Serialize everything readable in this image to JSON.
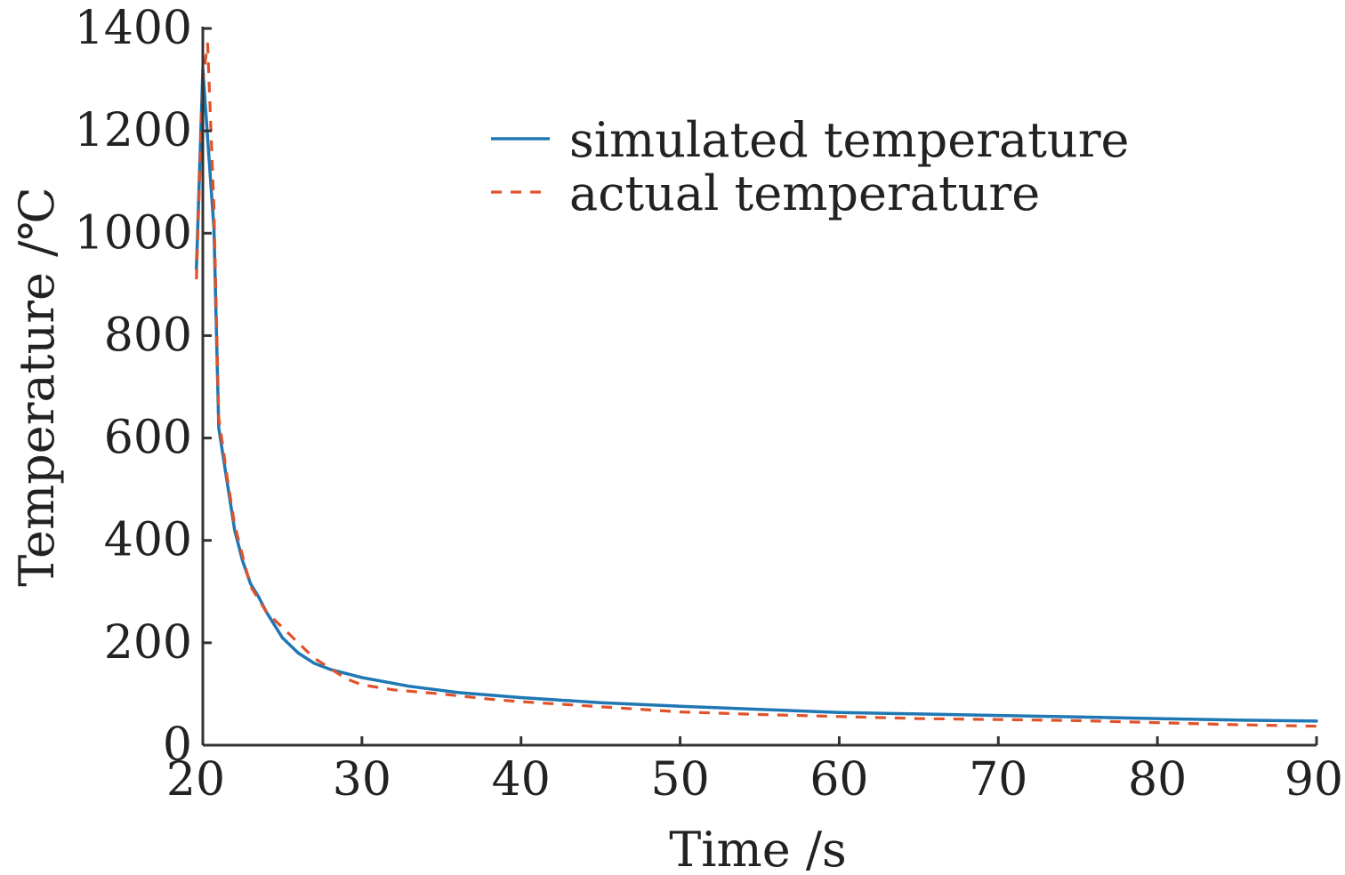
{
  "chart_data": {
    "type": "line",
    "title": "",
    "xlabel": "Time /s",
    "ylabel": "Temperature /℃",
    "xlim": [
      20,
      90
    ],
    "ylim": [
      0,
      1400
    ],
    "xticks": [
      20,
      30,
      40,
      50,
      60,
      70,
      80,
      90
    ],
    "yticks": [
      0,
      200,
      400,
      600,
      800,
      1000,
      1200,
      1400
    ],
    "grid": false,
    "legend_position": "top-right",
    "series": [
      {
        "name": "simulated temperature",
        "color": "#1f77b4",
        "style": "solid",
        "x": [
          19.6,
          20.0,
          20.7,
          21.0,
          21.5,
          22.0,
          22.5,
          23.0,
          23.5,
          24.0,
          25.0,
          26.0,
          27.0,
          28.0,
          30.0,
          33.0,
          36.0,
          40.0,
          45.0,
          50.0,
          55.0,
          60.0,
          65.0,
          70.0,
          75.0,
          80.0,
          85.0,
          90.0
        ],
        "y": [
          930,
          1320,
          1010,
          620,
          520,
          420,
          360,
          315,
          290,
          260,
          210,
          180,
          160,
          148,
          132,
          115,
          103,
          93,
          83,
          76,
          70,
          64,
          61,
          58,
          55,
          52,
          49,
          47
        ]
      },
      {
        "name": "actual temperature",
        "color": "#e0522a",
        "style": "dashed",
        "x": [
          19.6,
          20.0,
          20.3,
          20.7,
          21.0,
          21.5,
          22.0,
          22.5,
          23.0,
          24.0,
          25.0,
          26.0,
          27.0,
          28.0,
          29.0,
          30.0,
          32.0,
          35.0,
          38.0,
          40.0,
          45.0,
          50.0,
          55.0,
          60.0,
          65.0,
          70.0,
          75.0,
          80.0,
          85.0,
          90.0
        ],
        "y": [
          910,
          1300,
          1370,
          1050,
          640,
          530,
          430,
          370,
          310,
          260,
          230,
          200,
          170,
          150,
          130,
          118,
          108,
          100,
          90,
          85,
          75,
          65,
          60,
          56,
          52,
          50,
          48,
          44,
          40,
          37
        ]
      }
    ]
  }
}
